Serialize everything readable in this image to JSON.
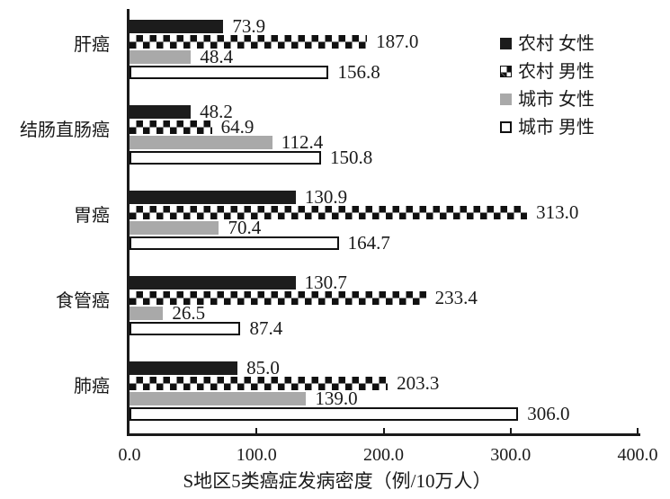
{
  "chart_data": {
    "type": "bar",
    "orientation": "horizontal",
    "title": "",
    "xlabel": "S地区5类癌症发病密度（例/10万人）",
    "ylabel": "",
    "xlim": [
      0,
      400
    ],
    "xticks": [
      0,
      100,
      200,
      300,
      400
    ],
    "xtick_labels": [
      "0.0",
      "100.0",
      "200.0",
      "300.0",
      "400.0"
    ],
    "grid": false,
    "legend_position": "top-right",
    "value_labels": "one-decimal",
    "categories": [
      "肝癌",
      "结肠直肠癌",
      "胃癌",
      "食管癌",
      "肺癌"
    ],
    "series": [
      {
        "name": "农村 女性",
        "pattern": "solid-black",
        "values": [
          73.9,
          48.2,
          130.9,
          130.7,
          85.0
        ]
      },
      {
        "name": "农村 男性",
        "pattern": "checkered",
        "values": [
          187.0,
          64.9,
          313.0,
          233.4,
          203.3
        ]
      },
      {
        "name": "城市 女性",
        "pattern": "solid-gray",
        "values": [
          48.4,
          112.4,
          70.4,
          26.5,
          139.0
        ]
      },
      {
        "name": "城市 男性",
        "pattern": "white-outline",
        "values": [
          156.8,
          150.8,
          164.7,
          87.4,
          306.0
        ]
      }
    ],
    "colors": {
      "bar_black": "#1c1c1c",
      "bar_gray": "#a9a9a9",
      "bar_white": "#ffffff",
      "axis": "#1a1a1a"
    }
  }
}
